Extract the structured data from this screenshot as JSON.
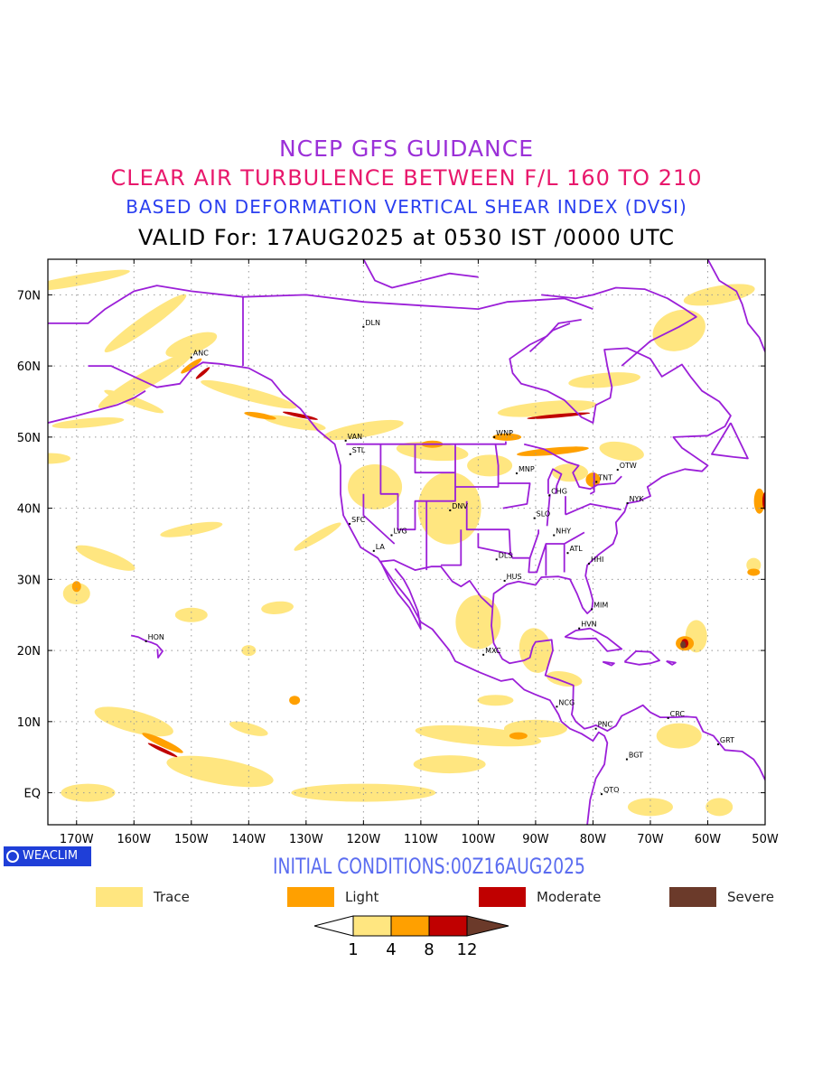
{
  "title": {
    "line1": "NCEP GFS GUIDANCE",
    "line2": "CLEAR AIR TURBULENCE BETWEEN F/L 160 TO 210",
    "line3": "BASED ON DEFORMATION VERTICAL SHEAR INDEX (DVSI)",
    "line4": "VALID For: 17AUG2025 at 0530 IST /0000 UTC"
  },
  "map": {
    "lat_labels": [
      "70N",
      "60N",
      "50N",
      "40N",
      "30N",
      "20N",
      "10N",
      "EQ"
    ],
    "lon_labels": [
      "170W",
      "160W",
      "150W",
      "140W",
      "130W",
      "120W",
      "110W",
      "100W",
      "90W",
      "80W",
      "70W",
      "60W",
      "50W"
    ],
    "cities": [
      {
        "name": "ANC",
        "lon": -150,
        "lat": 61.2
      },
      {
        "name": "DLN",
        "lon": -120,
        "lat": 65.5
      },
      {
        "name": "VAN",
        "lon": -123.1,
        "lat": 49.5
      },
      {
        "name": "STL",
        "lon": -122.3,
        "lat": 47.6
      },
      {
        "name": "WNP",
        "lon": -97.2,
        "lat": 50.0
      },
      {
        "name": "MNP",
        "lon": -93.3,
        "lat": 44.9
      },
      {
        "name": "OTW",
        "lon": -75.7,
        "lat": 45.4
      },
      {
        "name": "TNT",
        "lon": -79.4,
        "lat": 43.7
      },
      {
        "name": "CHG",
        "lon": -87.6,
        "lat": 41.8
      },
      {
        "name": "NYK",
        "lon": -74.0,
        "lat": 40.7
      },
      {
        "name": "SFC",
        "lon": -122.4,
        "lat": 37.8
      },
      {
        "name": "DNV",
        "lon": -104.9,
        "lat": 39.7
      },
      {
        "name": "SLO",
        "lon": -90.2,
        "lat": 38.6
      },
      {
        "name": "LVG",
        "lon": -115.1,
        "lat": 36.2
      },
      {
        "name": "NHY",
        "lon": -86.8,
        "lat": 36.2
      },
      {
        "name": "LA",
        "lon": -118.2,
        "lat": 34.0
      },
      {
        "name": "ATL",
        "lon": -84.4,
        "lat": 33.7
      },
      {
        "name": "DLS",
        "lon": -96.8,
        "lat": 32.8
      },
      {
        "name": "HHI",
        "lon": -80.7,
        "lat": 32.2
      },
      {
        "name": "HUS",
        "lon": -95.4,
        "lat": 29.8
      },
      {
        "name": "MIM",
        "lon": -80.2,
        "lat": 25.8
      },
      {
        "name": "HON",
        "lon": -157.9,
        "lat": 21.3
      },
      {
        "name": "HVN",
        "lon": -82.4,
        "lat": 23.1
      },
      {
        "name": "MXC",
        "lon": -99.1,
        "lat": 19.4
      },
      {
        "name": "NCG",
        "lon": -86.3,
        "lat": 12.1
      },
      {
        "name": "CRC",
        "lon": -66.9,
        "lat": 10.5
      },
      {
        "name": "PNC",
        "lon": -79.5,
        "lat": 9.0
      },
      {
        "name": "GRT",
        "lon": -58.2,
        "lat": 6.8
      },
      {
        "name": "BGT",
        "lon": -74.1,
        "lat": 4.7
      },
      {
        "name": "QTO",
        "lon": -78.5,
        "lat": -0.2
      }
    ]
  },
  "branding": {
    "badge_text": "WEACLIM"
  },
  "initial_conditions": "INITIAL CONDITIONS:00Z16AUG2025",
  "legend": [
    {
      "label": "Trace",
      "color": "#ffe680"
    },
    {
      "label": "Light",
      "color": "#ffa000"
    },
    {
      "label": "Moderate",
      "color": "#c00000"
    },
    {
      "label": "Severe",
      "color": "#6b3a2a"
    }
  ],
  "colorbar": {
    "ticks": [
      "1",
      "4",
      "8",
      "12"
    ],
    "colors": [
      "#ffe680",
      "#ffa000",
      "#c00000",
      "#6b3a2a"
    ]
  },
  "colors": {
    "coastline": "#9b1fd8",
    "grid": "#999999"
  }
}
